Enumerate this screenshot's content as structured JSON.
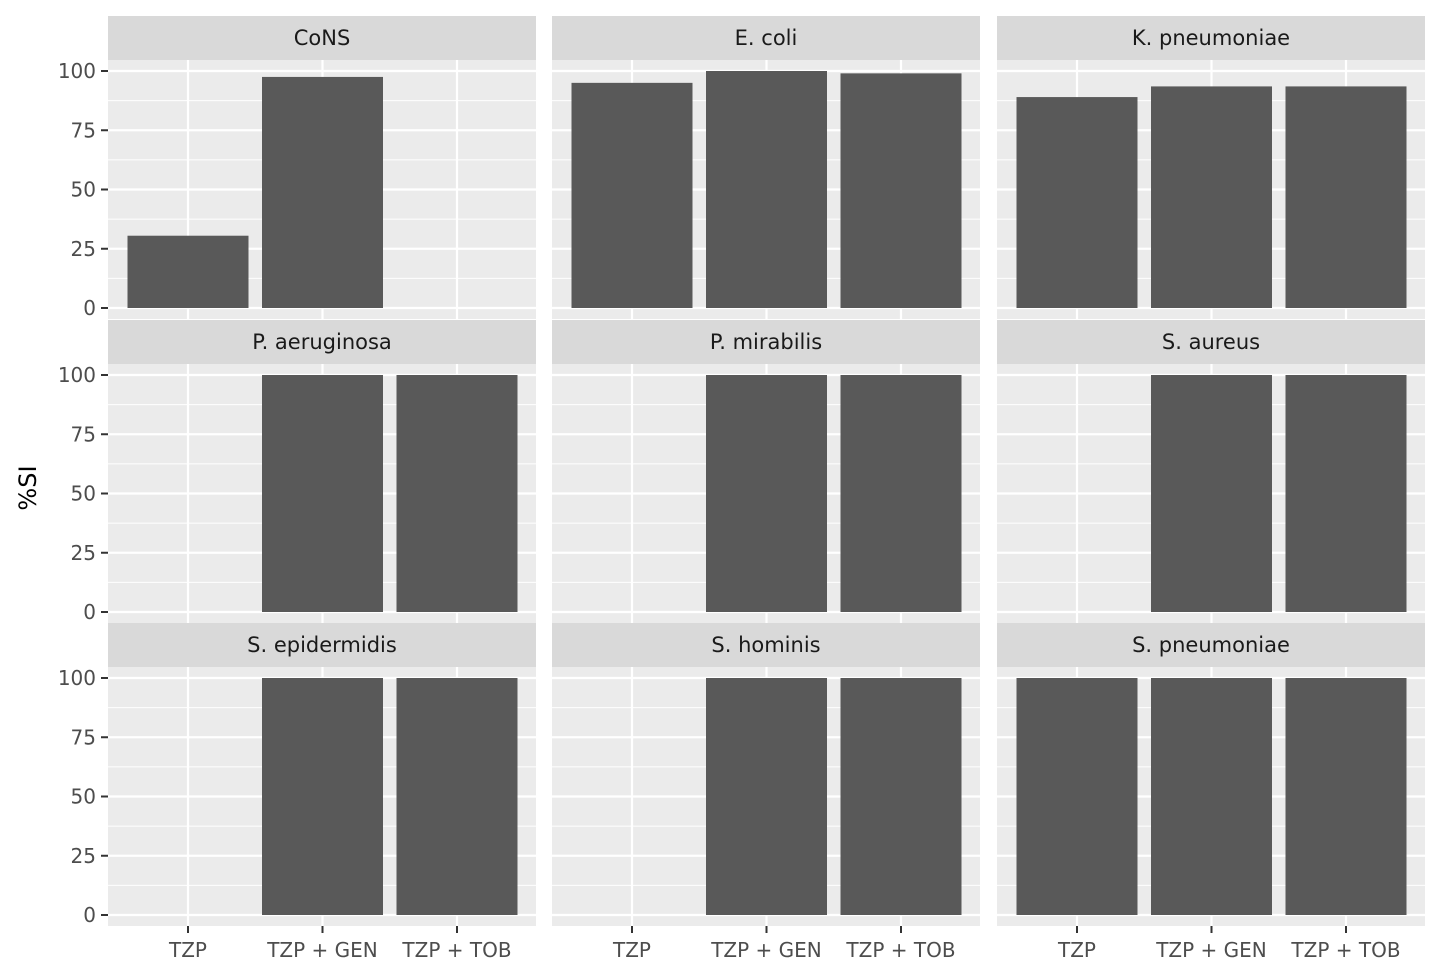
{
  "chart_data": {
    "type": "bar",
    "facet": "wrap",
    "ylabel": "%SI",
    "xlabel": "",
    "ylim": [
      0,
      120
    ],
    "yticks": [
      0,
      25,
      50,
      75,
      100
    ],
    "categories": [
      "TZP",
      "TZP + GEN",
      "TZP + TOB"
    ],
    "grid": true,
    "colors": {
      "bar": "#595959",
      "panel_bg": "#ebebeb",
      "strip_bg": "#d9d9d9",
      "grid": "#ffffff",
      "text": "#1a1a1a",
      "tick_text": "#4d4d4d"
    },
    "panels": [
      {
        "title": "CoNS",
        "values": [
          30.5,
          97.5,
          null
        ]
      },
      {
        "title": "E. coli",
        "values": [
          95,
          100,
          99
        ]
      },
      {
        "title": "K. pneumoniae",
        "values": [
          89,
          93.5,
          93.5
        ]
      },
      {
        "title": "P. aeruginosa",
        "values": [
          null,
          100,
          100
        ]
      },
      {
        "title": "P. mirabilis",
        "values": [
          null,
          100,
          100
        ]
      },
      {
        "title": "S. aureus",
        "values": [
          null,
          100,
          100
        ]
      },
      {
        "title": "S. epidermidis",
        "values": [
          null,
          100,
          100
        ]
      },
      {
        "title": "S. hominis",
        "values": [
          null,
          100,
          100
        ]
      },
      {
        "title": "S. pneumoniae",
        "values": [
          100,
          100,
          100
        ]
      }
    ]
  }
}
